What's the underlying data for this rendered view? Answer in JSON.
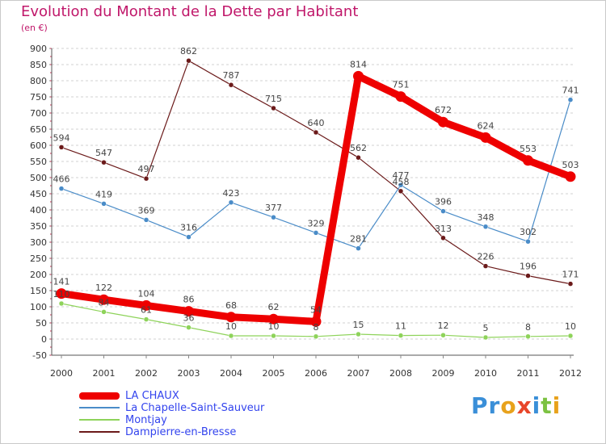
{
  "title": "Evolution du Montant de la Dette par Habitant",
  "unit": "(en €)",
  "logo": {
    "letters": [
      "P",
      "r",
      "o",
      "x",
      "i",
      "t",
      "i"
    ],
    "colors": [
      "#3a8fd8",
      "#3a8fd8",
      "#e8a21c",
      "#e8462a",
      "#3a8fd8",
      "#7cc242",
      "#e8a21c"
    ]
  },
  "chart_data": {
    "type": "line",
    "title": "Evolution du Montant de la Dette par Habitant",
    "ylabel": "(en €)",
    "xlabel": "",
    "x": [
      "2000",
      "2001",
      "2002",
      "2003",
      "2004",
      "2005",
      "2006",
      "2007",
      "2008",
      "2009",
      "2010",
      "2011",
      "2012"
    ],
    "ylim": [
      -50,
      900
    ],
    "ytick_step": 50,
    "yticks": [
      "-50",
      "0",
      "50",
      "100",
      "150",
      "200",
      "250",
      "300",
      "350",
      "400",
      "450",
      "500",
      "550",
      "600",
      "650",
      "700",
      "750",
      "800",
      "850",
      "900"
    ],
    "grid": "horizontal dashed",
    "legend_position": "bottom-left",
    "series": [
      {
        "name": "Dampierre-en-Bresse",
        "color": "#6b1a1a",
        "width": 1.2,
        "values": [
          594,
          547,
          497,
          862,
          787,
          715,
          640,
          562,
          458,
          313,
          226,
          196,
          171
        ],
        "labels": [
          "594",
          "547",
          "497",
          "862",
          "787",
          "715",
          "640",
          "562",
          "458",
          "313",
          "226",
          "196",
          "171"
        ]
      },
      {
        "name": "La Chapelle-Saint-Sauveur",
        "color": "#4a8cc8",
        "width": 1.2,
        "values": [
          466,
          419,
          369,
          316,
          423,
          377,
          329,
          281,
          477,
          396,
          348,
          302,
          741
        ],
        "labels": [
          "466",
          "419",
          "369",
          "316",
          "423",
          "377",
          "329",
          "281",
          "477",
          "396",
          "348",
          "302",
          "741"
        ]
      },
      {
        "name": "Montjay",
        "color": "#8ed35a",
        "width": 1.2,
        "values": [
          110,
          84,
          61,
          36,
          10,
          10,
          8,
          15,
          11,
          12,
          5,
          8,
          10
        ],
        "labels": [
          "110",
          "84",
          "61",
          "36",
          "10",
          "10",
          "8",
          "15",
          "11",
          "12",
          "5",
          "8",
          "10"
        ]
      },
      {
        "name": "LA CHAUX",
        "color": "#ee0000",
        "width": 9,
        "values": [
          141,
          122,
          104,
          86,
          68,
          62,
          54,
          814,
          751,
          672,
          624,
          553,
          503
        ],
        "labels": [
          "141",
          "122",
          "104",
          "86",
          "68",
          "62",
          "54",
          "814",
          "751",
          "672",
          "624",
          "553",
          "503"
        ]
      }
    ]
  },
  "legend": [
    {
      "name": "LA CHAUX",
      "color": "#ee0000",
      "thick": 9
    },
    {
      "name": "La Chapelle-Saint-Sauveur",
      "color": "#4a8cc8",
      "thick": 2
    },
    {
      "name": "Montjay",
      "color": "#8ed35a",
      "thick": 2
    },
    {
      "name": "Dampierre-en-Bresse",
      "color": "#6b1a1a",
      "thick": 2
    }
  ]
}
